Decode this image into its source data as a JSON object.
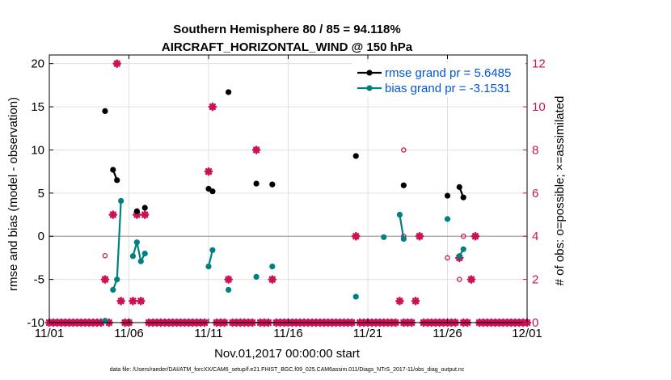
{
  "chart_data": {
    "type": "scatter",
    "title": "Southern Hemisphere 80 / 85 = 94.118%",
    "subtitle": "AIRCRAFT_HORIZONTAL_WIND @ 150 hPa",
    "xlabel": "Nov.01,2017 00:00:00 start",
    "ylabel": "rmse and bias (model - observation)",
    "ylabel_right": "# of obs: o=possible; ×=assimilated",
    "footnote": "data file: /Users/raeder/DAI/ATM_forcXX/CAM6_setup/f.e21.FHIST_BGC.f09_025.CAM6assim.011/Diags_NTrS_2017-11/obs_diag_output.nc",
    "xlim": [
      0,
      30
    ],
    "ylim": [
      -10,
      21
    ],
    "ylim_right": [
      0,
      12.4
    ],
    "x_ticks": [
      0,
      5,
      10,
      15,
      20,
      25,
      30
    ],
    "x_tick_labels": [
      "11/01",
      "11/06",
      "11/11",
      "11/16",
      "11/21",
      "11/26",
      "12/01"
    ],
    "y_ticks": [
      -10,
      -5,
      0,
      5,
      10,
      15,
      20
    ],
    "y_ticks_right": [
      0,
      2,
      4,
      6,
      8,
      10,
      12
    ],
    "grid": true,
    "legend_position": "top-right",
    "colors": {
      "rmse": "#000000",
      "bias": "#008080",
      "legend_text": "#0055dd",
      "counts": "#cc1155",
      "zero_line": "#b0b0b0",
      "grid": "#e0e0e0"
    },
    "series": [
      {
        "name": "rmse grand pr = 5.6485",
        "role": "rmse",
        "segments": [
          [
            [
              3.5,
              14.5
            ]
          ],
          [
            [
              4.0,
              7.7
            ],
            [
              4.25,
              6.5
            ]
          ],
          [
            [
              5.5,
              2.9
            ]
          ],
          [
            [
              6.0,
              3.3
            ]
          ],
          [
            [
              10.0,
              5.5
            ],
            [
              10.25,
              5.2
            ]
          ],
          [
            [
              11.25,
              16.7
            ]
          ],
          [
            [
              13.0,
              6.1
            ]
          ],
          [
            [
              14.0,
              6.0
            ]
          ],
          [
            [
              19.25,
              9.3
            ]
          ],
          [
            [
              22.25,
              5.9
            ]
          ],
          [
            [
              25.0,
              4.7
            ]
          ],
          [
            [
              25.75,
              5.7
            ],
            [
              26.0,
              4.5
            ]
          ]
        ]
      },
      {
        "name": "bias grand pr = -3.1531",
        "role": "bias",
        "segments": [
          [
            [
              3.5,
              -9.8
            ]
          ],
          [
            [
              4.0,
              -6.2
            ],
            [
              4.25,
              -5.0
            ],
            [
              4.5,
              4.1
            ]
          ],
          [
            [
              5.25,
              -2.3
            ],
            [
              5.5,
              -0.7
            ],
            [
              5.75,
              -2.9
            ],
            [
              6.0,
              -2.0
            ]
          ],
          [
            [
              10.0,
              -3.5
            ],
            [
              10.25,
              -1.6
            ]
          ],
          [
            [
              11.25,
              -6.2
            ]
          ],
          [
            [
              13.0,
              -4.7
            ]
          ],
          [
            [
              14.0,
              -3.5
            ]
          ],
          [
            [
              19.25,
              -7.0
            ]
          ],
          [
            [
              21.0,
              -0.1
            ]
          ],
          [
            [
              22.0,
              2.5
            ],
            [
              22.25,
              -0.3
            ]
          ],
          [
            [
              25.0,
              2.0
            ]
          ],
          [
            [
              25.75,
              -2.3
            ],
            [
              26.0,
              -1.5
            ]
          ]
        ]
      }
    ],
    "obs_assimilated": {
      "x": [
        0,
        0.25,
        0.5,
        0.75,
        1,
        1.25,
        1.5,
        1.75,
        2,
        2.25,
        2.5,
        2.75,
        3,
        3.25,
        3.5,
        3.75,
        4,
        4.25,
        4.5,
        4.75,
        5,
        5.25,
        5.5,
        5.75,
        6,
        6.25,
        6.5,
        6.75,
        7,
        7.25,
        7.5,
        7.75,
        8,
        8.25,
        8.5,
        8.75,
        9,
        9.25,
        9.5,
        9.75,
        10,
        10.25,
        10.5,
        10.75,
        11,
        11.25,
        11.5,
        11.75,
        12,
        12.25,
        12.5,
        12.75,
        13,
        13.25,
        13.5,
        13.75,
        14,
        14.25,
        14.5,
        14.75,
        15,
        15.25,
        15.5,
        15.75,
        16,
        16.25,
        16.5,
        16.75,
        17,
        17.25,
        17.5,
        17.75,
        18,
        18.25,
        18.5,
        18.75,
        19,
        19.25,
        19.5,
        19.75,
        20,
        20.25,
        20.5,
        20.75,
        21,
        21.25,
        21.5,
        21.75,
        22,
        22.25,
        22.5,
        22.75,
        23,
        23.25,
        23.5,
        23.75,
        24,
        24.25,
        24.5,
        24.75,
        25,
        25.25,
        25.5,
        25.75,
        26,
        26.25,
        26.5,
        26.75,
        27,
        27.25,
        27.5,
        27.75,
        28,
        28.25,
        28.5,
        28.75,
        29,
        29.25,
        29.5,
        29.75,
        30
      ],
      "y": [
        0,
        0,
        0,
        0,
        0,
        0,
        0,
        0,
        0,
        0,
        0,
        0,
        0,
        0,
        2,
        0,
        5,
        12,
        1,
        0,
        0,
        1,
        5,
        1,
        5,
        0,
        0,
        0,
        0,
        0,
        0,
        0,
        0,
        0,
        0,
        0,
        0,
        0,
        0,
        0,
        7,
        10,
        0,
        0,
        0,
        2,
        0,
        0,
        0,
        0,
        0,
        0,
        8,
        0,
        0,
        0,
        2,
        0,
        0,
        0,
        0,
        0,
        0,
        0,
        0,
        0,
        0,
        0,
        0,
        0,
        0,
        0,
        0,
        0,
        0,
        0,
        0,
        4,
        0,
        0,
        0,
        0,
        0,
        0,
        0,
        0,
        0,
        0,
        1,
        0,
        0,
        0,
        1,
        4,
        0,
        0,
        0,
        0,
        0,
        0,
        0,
        0,
        0,
        3,
        0,
        0,
        2,
        4,
        0,
        0,
        0,
        0,
        0,
        0,
        0,
        0,
        0,
        0,
        0,
        0,
        0
      ]
    },
    "obs_possible": {
      "x": [
        3.5,
        3.5,
        4.25,
        5.5,
        6.0,
        10.0,
        10.25,
        11.25,
        13.0,
        14.0,
        19.25,
        22.25,
        22.25,
        25.0,
        25.75,
        26.0
      ],
      "y": [
        3.1,
        0.1,
        12.0,
        5.0,
        5.0,
        7.0,
        10.0,
        2.0,
        8.0,
        2.0,
        4.0,
        8.0,
        4.0,
        3.0,
        2.0,
        4.0
      ]
    }
  }
}
